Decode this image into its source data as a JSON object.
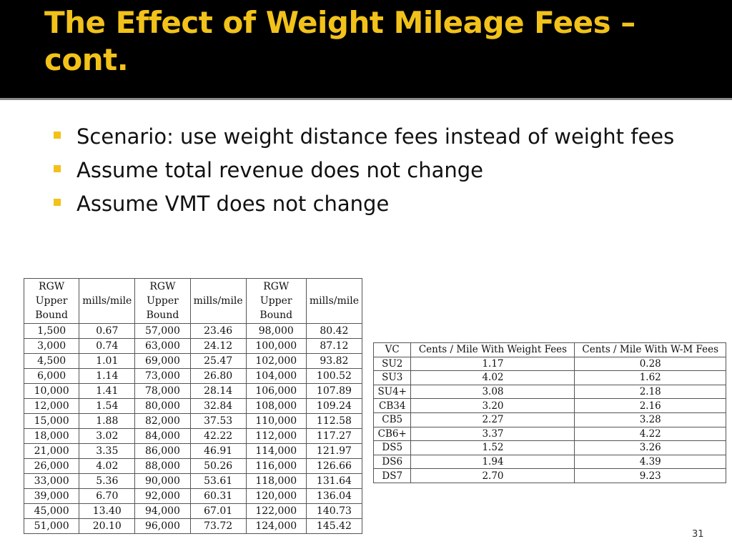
{
  "slide": {
    "title": "The Effect of Weight Mileage Fees – cont.",
    "page_number": "31",
    "accent_color": "#f2c21a",
    "bullets": [
      "Scenario: use weight distance fees instead of weight fees",
      "Assume total revenue does not change",
      "Assume VMT does not change"
    ]
  },
  "rate_table": {
    "headers": [
      "RGW Upper Bound",
      "mills/mile",
      "RGW Upper Bound",
      "mills/mile",
      "RGW Upper Bound",
      "mills/mile"
    ],
    "rows": [
      [
        "1,500",
        "0.67",
        "57,000",
        "23.46",
        "98,000",
        "80.42"
      ],
      [
        "3,000",
        "0.74",
        "63,000",
        "24.12",
        "100,000",
        "87.12"
      ],
      [
        "4,500",
        "1.01",
        "69,000",
        "25.47",
        "102,000",
        "93.82"
      ],
      [
        "6,000",
        "1.14",
        "73,000",
        "26.80",
        "104,000",
        "100.52"
      ],
      [
        "10,000",
        "1.41",
        "78,000",
        "28.14",
        "106,000",
        "107.89"
      ],
      [
        "12,000",
        "1.54",
        "80,000",
        "32.84",
        "108,000",
        "109.24"
      ],
      [
        "15,000",
        "1.88",
        "82,000",
        "37.53",
        "110,000",
        "112.58"
      ],
      [
        "18,000",
        "3.02",
        "84,000",
        "42.22",
        "112,000",
        "117.27"
      ],
      [
        "21,000",
        "3.35",
        "86,000",
        "46.91",
        "114,000",
        "121.97"
      ],
      [
        "26,000",
        "4.02",
        "88,000",
        "50.26",
        "116,000",
        "126.66"
      ],
      [
        "33,000",
        "5.36",
        "90,000",
        "53.61",
        "118,000",
        "131.64"
      ],
      [
        "39,000",
        "6.70",
        "92,000",
        "60.31",
        "120,000",
        "136.04"
      ],
      [
        "45,000",
        "13.40",
        "94,000",
        "67.01",
        "122,000",
        "140.73"
      ],
      [
        "51,000",
        "20.10",
        "96,000",
        "73.72",
        "124,000",
        "145.42"
      ]
    ]
  },
  "cost_table": {
    "headers": [
      "VC",
      "Cents / Mile With Weight Fees",
      "Cents / Mile With W-M Fees"
    ],
    "rows": [
      [
        "SU2",
        "1.17",
        "0.28"
      ],
      [
        "SU3",
        "4.02",
        "1.62"
      ],
      [
        "SU4+",
        "3.08",
        "2.18"
      ],
      [
        "CB34",
        "3.20",
        "2.16"
      ],
      [
        "CB5",
        "2.27",
        "3.28"
      ],
      [
        "CB6+",
        "3.37",
        "4.22"
      ],
      [
        "DS5",
        "1.52",
        "3.26"
      ],
      [
        "DS6",
        "1.94",
        "4.39"
      ],
      [
        "DS7",
        "2.70",
        "9.23"
      ]
    ]
  }
}
